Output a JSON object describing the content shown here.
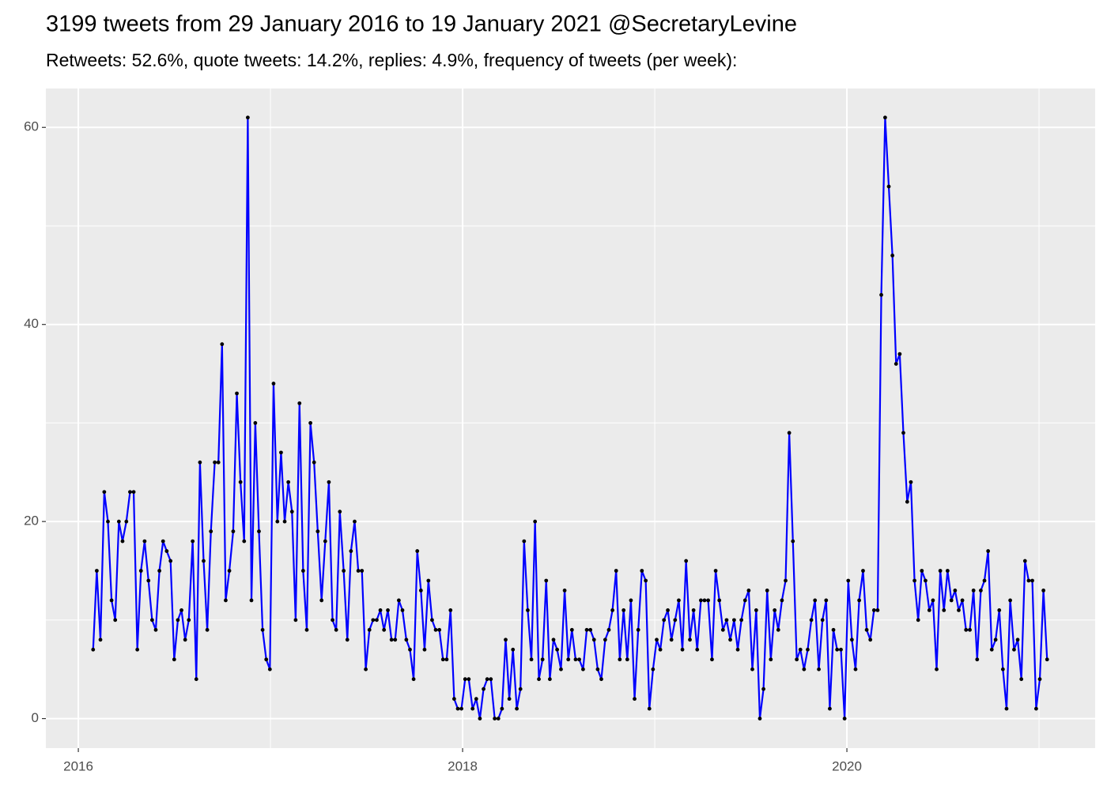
{
  "chart_data": {
    "type": "line",
    "title": "3199 tweets from 29 January 2016 to 19 January 2021 @SecretaryLevine",
    "subtitle": "Retweets: 52.6%, quote tweets: 14.2%, replies: 4.9%, frequency of tweets (per week):",
    "color": "#0000ff",
    "point_color": "#000000",
    "grid": true,
    "xlim": [
      2015.831,
      2021.292
    ],
    "ylim": [
      -3.0,
      63.95
    ],
    "xticks": [
      2016,
      2018,
      2020
    ],
    "yticks": [
      0,
      20,
      40,
      60
    ],
    "xminor": [
      2017,
      2019,
      2021
    ],
    "yminor": [
      10,
      30,
      50
    ],
    "x": [
      2016.077,
      2016.096,
      2016.115,
      2016.135,
      2016.154,
      2016.173,
      2016.192,
      2016.211,
      2016.23,
      2016.25,
      2016.269,
      2016.288,
      2016.307,
      2016.326,
      2016.345,
      2016.365,
      2016.384,
      2016.403,
      2016.422,
      2016.441,
      2016.46,
      2016.48,
      2016.499,
      2016.518,
      2016.537,
      2016.556,
      2016.575,
      2016.595,
      2016.614,
      2016.633,
      2016.652,
      2016.671,
      2016.69,
      2016.71,
      2016.729,
      2016.748,
      2016.767,
      2016.786,
      2016.806,
      2016.825,
      2016.844,
      2016.863,
      2016.882,
      2016.901,
      2016.921,
      2016.94,
      2016.959,
      2016.978,
      2016.997,
      2017.016,
      2017.036,
      2017.055,
      2017.074,
      2017.093,
      2017.112,
      2017.131,
      2017.151,
      2017.17,
      2017.189,
      2017.208,
      2017.227,
      2017.246,
      2017.266,
      2017.285,
      2017.304,
      2017.323,
      2017.342,
      2017.361,
      2017.381,
      2017.4,
      2017.419,
      2017.438,
      2017.457,
      2017.476,
      2017.496,
      2017.515,
      2017.534,
      2017.553,
      2017.572,
      2017.591,
      2017.611,
      2017.63,
      2017.649,
      2017.668,
      2017.687,
      2017.707,
      2017.726,
      2017.745,
      2017.764,
      2017.783,
      2017.802,
      2017.822,
      2017.841,
      2017.86,
      2017.879,
      2017.898,
      2017.917,
      2017.937,
      2017.956,
      2017.975,
      2017.994,
      2018.013,
      2018.032,
      2018.052,
      2018.071,
      2018.09,
      2018.109,
      2018.128,
      2018.147,
      2018.167,
      2018.186,
      2018.205,
      2018.224,
      2018.243,
      2018.262,
      2018.282,
      2018.301,
      2018.32,
      2018.339,
      2018.358,
      2018.377,
      2018.397,
      2018.416,
      2018.435,
      2018.454,
      2018.473,
      2018.492,
      2018.512,
      2018.531,
      2018.55,
      2018.569,
      2018.588,
      2018.607,
      2018.627,
      2018.646,
      2018.665,
      2018.684,
      2018.703,
      2018.722,
      2018.742,
      2018.761,
      2018.78,
      2018.799,
      2018.818,
      2018.838,
      2018.857,
      2018.876,
      2018.895,
      2018.914,
      2018.933,
      2018.953,
      2018.972,
      2018.991,
      2019.01,
      2019.029,
      2019.048,
      2019.068,
      2019.087,
      2019.106,
      2019.125,
      2019.144,
      2019.163,
      2019.183,
      2019.202,
      2019.221,
      2019.24,
      2019.259,
      2019.278,
      2019.298,
      2019.317,
      2019.336,
      2019.355,
      2019.374,
      2019.393,
      2019.413,
      2019.432,
      2019.451,
      2019.47,
      2019.489,
      2019.508,
      2019.528,
      2019.547,
      2019.566,
      2019.585,
      2019.604,
      2019.624,
      2019.643,
      2019.662,
      2019.681,
      2019.7,
      2019.719,
      2019.739,
      2019.758,
      2019.777,
      2019.796,
      2019.815,
      2019.834,
      2019.854,
      2019.873,
      2019.892,
      2019.911,
      2019.93,
      2019.949,
      2019.969,
      2019.988,
      2020.007,
      2020.026,
      2020.045,
      2020.064,
      2020.084,
      2020.103,
      2020.122,
      2020.141,
      2020.16,
      2020.179,
      2020.199,
      2020.218,
      2020.237,
      2020.256,
      2020.275,
      2020.294,
      2020.314,
      2020.333,
      2020.352,
      2020.371,
      2020.39,
      2020.409,
      2020.429,
      2020.448,
      2020.467,
      2020.486,
      2020.505,
      2020.524,
      2020.544,
      2020.563,
      2020.582,
      2020.601,
      2020.62,
      2020.64,
      2020.659,
      2020.678,
      2020.697,
      2020.716,
      2020.735,
      2020.754,
      2020.774,
      2020.793,
      2020.812,
      2020.831,
      2020.85,
      2020.87,
      2020.889,
      2020.908,
      2020.927,
      2020.946,
      2020.965,
      2020.985,
      2021.004,
      2021.023,
      2021.042
    ],
    "values": [
      7,
      15,
      8,
      23,
      20,
      12,
      10,
      20,
      18,
      20,
      23,
      23,
      7,
      15,
      18,
      14,
      10,
      9,
      15,
      18,
      17,
      16,
      6,
      10,
      11,
      8,
      10,
      18,
      4,
      26,
      16,
      9,
      19,
      26,
      26,
      38,
      12,
      15,
      19,
      33,
      24,
      18,
      61,
      12,
      30,
      19,
      9,
      6,
      5,
      34,
      20,
      27,
      20,
      24,
      21,
      10,
      32,
      15,
      9,
      30,
      26,
      19,
      12,
      18,
      24,
      10,
      9,
      21,
      15,
      8,
      17,
      20,
      15,
      15,
      5,
      9,
      10,
      10,
      11,
      9,
      11,
      8,
      8,
      12,
      11,
      8,
      7,
      4,
      17,
      13,
      7,
      14,
      10,
      9,
      9,
      6,
      6,
      11,
      2,
      1,
      1,
      4,
      4,
      1,
      2,
      0,
      3,
      4,
      4,
      0,
      0,
      1,
      8,
      2,
      7,
      1,
      3,
      18,
      11,
      6,
      20,
      4,
      6,
      14,
      4,
      8,
      7,
      5,
      13,
      6,
      9,
      6,
      6,
      5,
      9,
      9,
      8,
      5,
      4,
      8,
      9,
      11,
      15,
      6,
      11,
      6,
      12,
      2,
      9,
      15,
      14,
      1,
      5,
      8,
      7,
      10,
      11,
      8,
      10,
      12,
      7,
      16,
      8,
      11,
      7,
      12,
      12,
      12,
      6,
      15,
      12,
      9,
      10,
      8,
      10,
      7,
      10,
      12,
      13,
      5,
      11,
      0,
      3,
      13,
      6,
      11,
      9,
      12,
      14,
      29,
      18,
      6,
      7,
      5,
      7,
      10,
      12,
      5,
      10,
      12,
      1,
      9,
      7,
      7,
      0,
      14,
      8,
      5,
      12,
      15,
      9,
      8,
      11,
      11,
      43,
      61,
      54,
      47,
      36,
      37,
      29,
      22,
      24,
      14,
      10,
      15,
      14,
      11,
      12,
      5,
      15,
      11,
      15,
      12,
      13,
      11,
      12,
      9,
      9,
      13,
      6,
      13,
      14,
      17,
      7,
      8,
      11,
      5,
      1,
      12,
      7,
      8,
      4,
      16,
      14,
      14,
      1,
      4,
      13,
      6
    ]
  }
}
